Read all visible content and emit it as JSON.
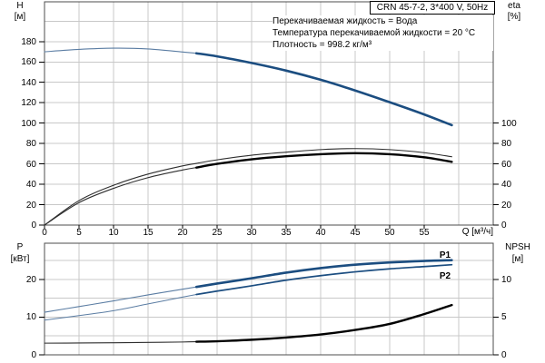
{
  "header": {
    "title_box": "CRN 45-7-2, 3*400 V, 50Hz"
  },
  "info_lines": [
    "Перекачиваемая жидкость = Вода",
    "Температура перекачиваемой жидкости = 20 °C",
    "Плотность = 998.2 кг/м³"
  ],
  "colors": {
    "curve_blue": "#1b4d80",
    "curve_blue_thin": "#5b7da3",
    "curve_black": "#000000",
    "curve_black_thin": "#2e2e2e",
    "grid": "#c8c8c8",
    "frame": "#4d4d4d",
    "text": "#000000"
  },
  "chart_data": [
    {
      "type": "line",
      "title": "Head and efficiency vs flow",
      "x_axis": {
        "label": "Q [м³/ч]",
        "min": 0,
        "max": 65,
        "grid_step": 5,
        "grid_max": 60,
        "tick_labels": [
          0,
          5,
          10,
          15,
          20,
          25,
          30,
          35,
          40,
          45,
          50,
          55
        ]
      },
      "y_left": {
        "label": "H",
        "unit": "[м]",
        "min": 0,
        "max": 219,
        "grid_step": 20,
        "grid_max": 200,
        "ticks": [
          0,
          20,
          40,
          60,
          80,
          100,
          120,
          140,
          160,
          180
        ]
      },
      "y_right": {
        "label": "eta",
        "unit": "[%]",
        "unit_scale": 1,
        "ticks": [
          0,
          20,
          40,
          60,
          80,
          100
        ]
      },
      "operating_range_from_q": 22,
      "series": [
        {
          "name": "head-curve",
          "label": "",
          "axis": "left",
          "unit_scale": 1,
          "style": "blue",
          "points": [
            [
              0,
              170
            ],
            [
              5,
              172.3
            ],
            [
              10,
              173.5
            ],
            [
              15,
              172.8
            ],
            [
              20,
              169.8
            ],
            [
              22,
              168.5
            ],
            [
              25,
              165.5
            ],
            [
              30,
              159
            ],
            [
              35,
              151.5
            ],
            [
              40,
              142.5
            ],
            [
              45,
              132
            ],
            [
              50,
              120.5
            ],
            [
              55,
              108.5
            ],
            [
              59,
              98
            ]
          ]
        },
        {
          "name": "eta-pump-curve",
          "label": "",
          "axis": "right",
          "unit_scale": 1,
          "style": "black_thin",
          "points": [
            [
              0,
              0
            ],
            [
              5,
              24
            ],
            [
              10,
              39
            ],
            [
              15,
              50
            ],
            [
              20,
              58
            ],
            [
              22,
              60.5
            ],
            [
              25,
              64
            ],
            [
              30,
              68.5
            ],
            [
              35,
              71.5
            ],
            [
              40,
              74
            ],
            [
              45,
              75
            ],
            [
              50,
              74
            ],
            [
              55,
              71
            ],
            [
              59,
              67
            ]
          ]
        },
        {
          "name": "eta-pump-motor-curve",
          "label": "",
          "axis": "right",
          "unit_scale": 1,
          "style": "black",
          "points": [
            [
              0,
              0
            ],
            [
              5,
              22
            ],
            [
              10,
              36
            ],
            [
              15,
              46.5
            ],
            [
              20,
              54
            ],
            [
              22,
              56.4
            ],
            [
              25,
              60
            ],
            [
              30,
              64.5
            ],
            [
              35,
              67.5
            ],
            [
              40,
              69.5
            ],
            [
              45,
              70.5
            ],
            [
              50,
              69.5
            ],
            [
              55,
              66.5
            ],
            [
              59,
              62
            ]
          ]
        }
      ]
    },
    {
      "type": "line",
      "title": "Power and NPSH vs flow",
      "x_axis": {
        "label": "",
        "min": 0,
        "max": 65,
        "grid_step": 5,
        "grid_max": 60,
        "tick_labels": []
      },
      "y_left": {
        "label": "P",
        "unit": "[кВт]",
        "min": 0,
        "max": 29.6,
        "grid_step": 5,
        "grid_max": 25,
        "ticks": [
          0,
          10,
          20
        ]
      },
      "y_right": {
        "label": "NPSH",
        "unit": "[м]",
        "unit_scale": 2,
        "ticks": [
          0,
          5,
          10
        ]
      },
      "operating_range_from_q": 22,
      "series": [
        {
          "name": "p1-curve",
          "label": "P1",
          "axis": "left",
          "unit_scale": 1,
          "style": "blue",
          "points": [
            [
              0,
              11.3
            ],
            [
              5,
              12.8
            ],
            [
              10,
              14.3
            ],
            [
              15,
              15.9
            ],
            [
              20,
              17.4
            ],
            [
              22,
              18.0
            ],
            [
              25,
              18.9
            ],
            [
              30,
              20.3
            ],
            [
              35,
              21.8
            ],
            [
              40,
              23.0
            ],
            [
              45,
              23.9
            ],
            [
              50,
              24.5
            ],
            [
              55,
              24.9
            ],
            [
              59,
              25.1
            ]
          ]
        },
        {
          "name": "p2-curve",
          "label": "P2",
          "axis": "left",
          "unit_scale": 1,
          "style": "blue_medium",
          "points": [
            [
              0,
              9.2
            ],
            [
              5,
              10.4
            ],
            [
              10,
              11.7
            ],
            [
              15,
              13.5
            ],
            [
              20,
              15.3
            ],
            [
              22,
              16.0
            ],
            [
              25,
              16.9
            ],
            [
              30,
              18.3
            ],
            [
              35,
              19.8
            ],
            [
              40,
              21.0
            ],
            [
              45,
              22.0
            ],
            [
              50,
              22.8
            ],
            [
              55,
              23.4
            ],
            [
              59,
              23.9
            ]
          ]
        },
        {
          "name": "npsh-curve",
          "label": "",
          "axis": "right",
          "unit_scale": 2,
          "style": "black",
          "points": [
            [
              0,
              1.55
            ],
            [
              5,
              1.57
            ],
            [
              10,
              1.6
            ],
            [
              15,
              1.65
            ],
            [
              20,
              1.7
            ],
            [
              22,
              1.74
            ],
            [
              25,
              1.8
            ],
            [
              30,
              2.0
            ],
            [
              35,
              2.3
            ],
            [
              40,
              2.7
            ],
            [
              45,
              3.3
            ],
            [
              50,
              4.1
            ],
            [
              55,
              5.4
            ],
            [
              59,
              6.6
            ]
          ]
        }
      ]
    }
  ]
}
